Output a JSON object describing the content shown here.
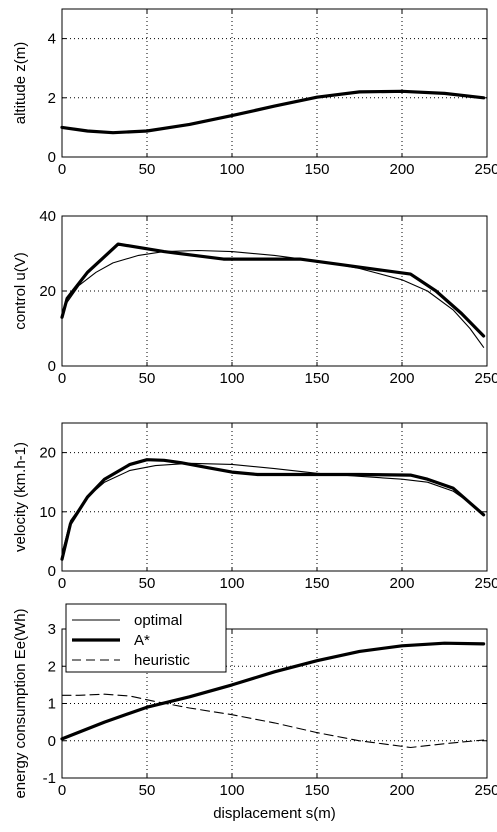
{
  "chart_data": [
    {
      "type": "line",
      "title": "",
      "xlabel": "",
      "ylabel": "altitude z(m)",
      "xlim": [
        0,
        250
      ],
      "ylim": [
        0,
        5
      ],
      "xticks": [
        "0",
        "50",
        "100",
        "150",
        "200",
        "250"
      ],
      "yticks": [
        "0",
        "2",
        "4"
      ],
      "grid": true,
      "series": [
        {
          "style": "thick",
          "x": [
            0,
            15,
            30,
            50,
            75,
            100,
            125,
            150,
            175,
            200,
            225,
            248
          ],
          "y": [
            1.0,
            0.88,
            0.82,
            0.88,
            1.1,
            1.4,
            1.72,
            2.02,
            2.2,
            2.22,
            2.15,
            2.0
          ]
        }
      ]
    },
    {
      "type": "line",
      "title": "",
      "xlabel": "",
      "ylabel": "control u(V)",
      "xlim": [
        0,
        250
      ],
      "ylim": [
        0,
        40
      ],
      "xticks": [
        "0",
        "50",
        "100",
        "150",
        "200",
        "250"
      ],
      "yticks": [
        "0",
        "20",
        "40"
      ],
      "grid": true,
      "series": [
        {
          "style": "thin",
          "x": [
            0,
            3,
            10,
            20,
            30,
            45,
            60,
            80,
            100,
            125,
            150,
            175,
            200,
            215,
            230,
            240,
            248
          ],
          "y": [
            14,
            17,
            21.5,
            25,
            27.5,
            29.5,
            30.5,
            30.8,
            30.5,
            29.5,
            28,
            26,
            23,
            20,
            15,
            10,
            5
          ]
        },
        {
          "style": "thick",
          "x": [
            0,
            3,
            15,
            33,
            60,
            95,
            140,
            165,
            205,
            220,
            235,
            248
          ],
          "y": [
            13,
            18,
            25,
            32.5,
            30.5,
            28.5,
            28.5,
            27,
            24.5,
            20,
            14,
            8
          ]
        }
      ]
    },
    {
      "type": "line",
      "title": "",
      "xlabel": "",
      "ylabel": "velocity (km.h-1)",
      "xlim": [
        0,
        250
      ],
      "ylim": [
        0,
        25
      ],
      "xticks": [
        "0",
        "50",
        "100",
        "150",
        "200",
        "250"
      ],
      "yticks": [
        "0",
        "10",
        "20"
      ],
      "grid": true,
      "series": [
        {
          "style": "thin",
          "x": [
            0,
            5,
            15,
            25,
            40,
            55,
            75,
            100,
            125,
            150,
            175,
            200,
            215,
            230,
            240,
            248
          ],
          "y": [
            3,
            8.5,
            12.5,
            15,
            17,
            17.8,
            18.2,
            18,
            17.3,
            16.5,
            16,
            15.5,
            15,
            13.5,
            11.5,
            9.5
          ]
        },
        {
          "style": "thick",
          "x": [
            0,
            5,
            15,
            25,
            40,
            50,
            60,
            70,
            85,
            100,
            115,
            150,
            175,
            205,
            215,
            230,
            240,
            248
          ],
          "y": [
            2,
            8,
            12.5,
            15.5,
            18,
            18.8,
            18.7,
            18.3,
            17.5,
            16.7,
            16.3,
            16.3,
            16.3,
            16.2,
            15.5,
            14,
            11.5,
            9.5
          ]
        }
      ]
    },
    {
      "type": "line",
      "title": "",
      "xlabel": "displacement s(m)",
      "ylabel": "energy consumption Ee(Wh)",
      "xlim": [
        0,
        250
      ],
      "ylim": [
        -1,
        3
      ],
      "xticks": [
        "0",
        "50",
        "100",
        "150",
        "200",
        "250"
      ],
      "yticks": [
        "-1",
        "0",
        "1",
        "2",
        "3"
      ],
      "grid": true,
      "legend_position": "top-left",
      "series": [
        {
          "name": "optimal",
          "style": "thin",
          "x": [
            0,
            25,
            50,
            75,
            100,
            125,
            150,
            175,
            200,
            225,
            248
          ],
          "y": [
            0.05,
            0.5,
            0.9,
            1.18,
            1.5,
            1.85,
            2.15,
            2.4,
            2.55,
            2.62,
            2.6
          ]
        },
        {
          "name": "A*",
          "style": "thick",
          "x": [
            0,
            25,
            50,
            75,
            100,
            125,
            150,
            175,
            200,
            225,
            248
          ],
          "y": [
            0.05,
            0.5,
            0.9,
            1.18,
            1.5,
            1.85,
            2.15,
            2.4,
            2.55,
            2.62,
            2.6
          ]
        },
        {
          "name": "heuristic",
          "style": "dashed",
          "x": [
            0,
            10,
            25,
            40,
            55,
            75,
            100,
            125,
            150,
            175,
            195,
            205,
            225,
            248
          ],
          "y": [
            1.22,
            1.22,
            1.25,
            1.2,
            1.05,
            0.88,
            0.7,
            0.48,
            0.22,
            0.0,
            -0.12,
            -0.18,
            -0.08,
            0.02
          ]
        }
      ]
    }
  ]
}
